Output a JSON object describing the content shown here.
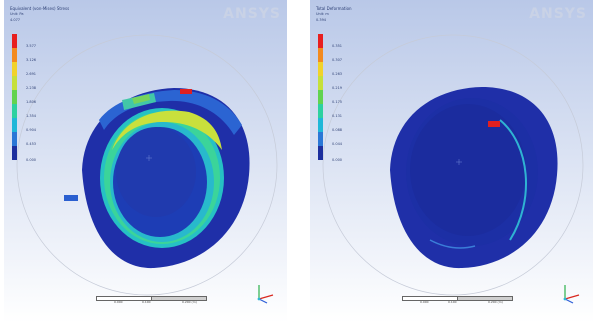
{
  "panels": [
    {
      "title": "Equivalent (von-Mises) Stress",
      "subtitle": "Unit: Pa",
      "max_value": "4.077",
      "legend": [
        "3.577",
        "3.126",
        "2.691",
        "2.238",
        "1.806",
        "1.354",
        "0.904",
        "0.453",
        "0.000"
      ],
      "max_tag": "Max",
      "logo": "ANSYS",
      "scale": [
        "0.000",
        "0.100",
        "0.200 (m)"
      ]
    },
    {
      "title": "Total Deformation",
      "subtitle": "Unit: m",
      "max_value": "0.394",
      "legend": [
        "0.351",
        "0.307",
        "0.263",
        "0.219",
        "0.175",
        "0.131",
        "0.088",
        "0.044",
        "0.000"
      ],
      "max_tag": "Max",
      "min_tag": "Min",
      "logo": "ANSYS",
      "scale": [
        "0.000",
        "0.100",
        "0.200 (m)"
      ]
    }
  ],
  "legend_colors": [
    "#e81f1f",
    "#f38a1e",
    "#f1d22a",
    "#c6e03a",
    "#62d34f",
    "#2dd1a0",
    "#1fb7d8",
    "#2a77d6",
    "#1d2f9e"
  ],
  "icons": [
    "triad-axis-icon",
    "ansys-logo"
  ]
}
